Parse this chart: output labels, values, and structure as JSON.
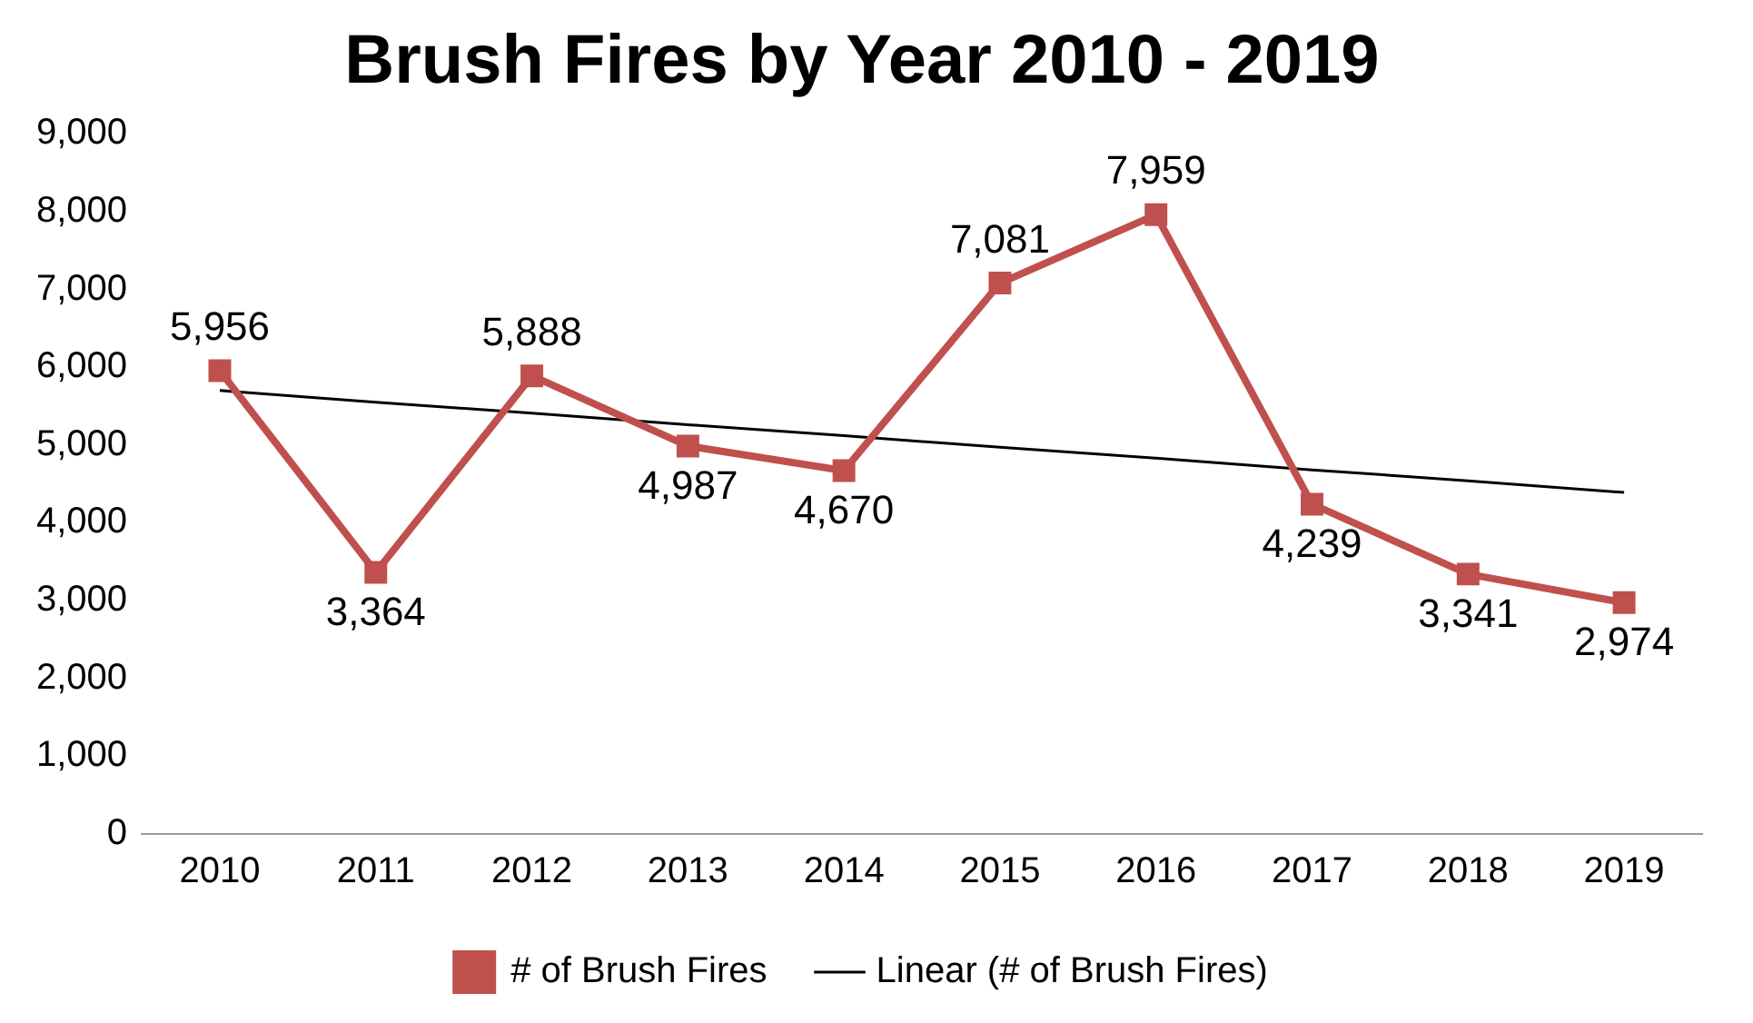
{
  "chart_data": {
    "type": "line",
    "title": "Brush Fires by Year 2010 - 2019",
    "categories": [
      "2010",
      "2011",
      "2012",
      "2013",
      "2014",
      "2015",
      "2016",
      "2017",
      "2018",
      "2019"
    ],
    "series": [
      {
        "name": "# of Brush Fires",
        "color": "#c0504d",
        "values": [
          5956,
          3364,
          5888,
          4987,
          4670,
          7081,
          7959,
          4239,
          3341,
          2974
        ],
        "marker": "square",
        "value_labels": [
          "5,956",
          "3,364",
          "5,888",
          "4,987",
          "4,670",
          "7,081",
          "7,959",
          "4,239",
          "3,341",
          "2,974"
        ]
      },
      {
        "name": "Linear (# of Brush Fires)",
        "type": "line",
        "color": "#000000",
        "values": [
          5700,
          5550,
          5410,
          5260,
          5120,
          4970,
          4830,
          4680,
          4540,
          4390
        ],
        "marker": "none"
      }
    ],
    "ylim": [
      0,
      9000
    ],
    "yticks": [
      {
        "value": 0,
        "label": "0"
      },
      {
        "value": 1000,
        "label": "1,000"
      },
      {
        "value": 2000,
        "label": "2,000"
      },
      {
        "value": 3000,
        "label": "3,000"
      },
      {
        "value": 4000,
        "label": "4,000"
      },
      {
        "value": 5000,
        "label": "5,000"
      },
      {
        "value": 6000,
        "label": "6,000"
      },
      {
        "value": 7000,
        "label": "7,000"
      },
      {
        "value": 8000,
        "label": "8,000"
      },
      {
        "value": 9000,
        "label": "9,000"
      }
    ],
    "grid": false,
    "legend": "bottom"
  }
}
